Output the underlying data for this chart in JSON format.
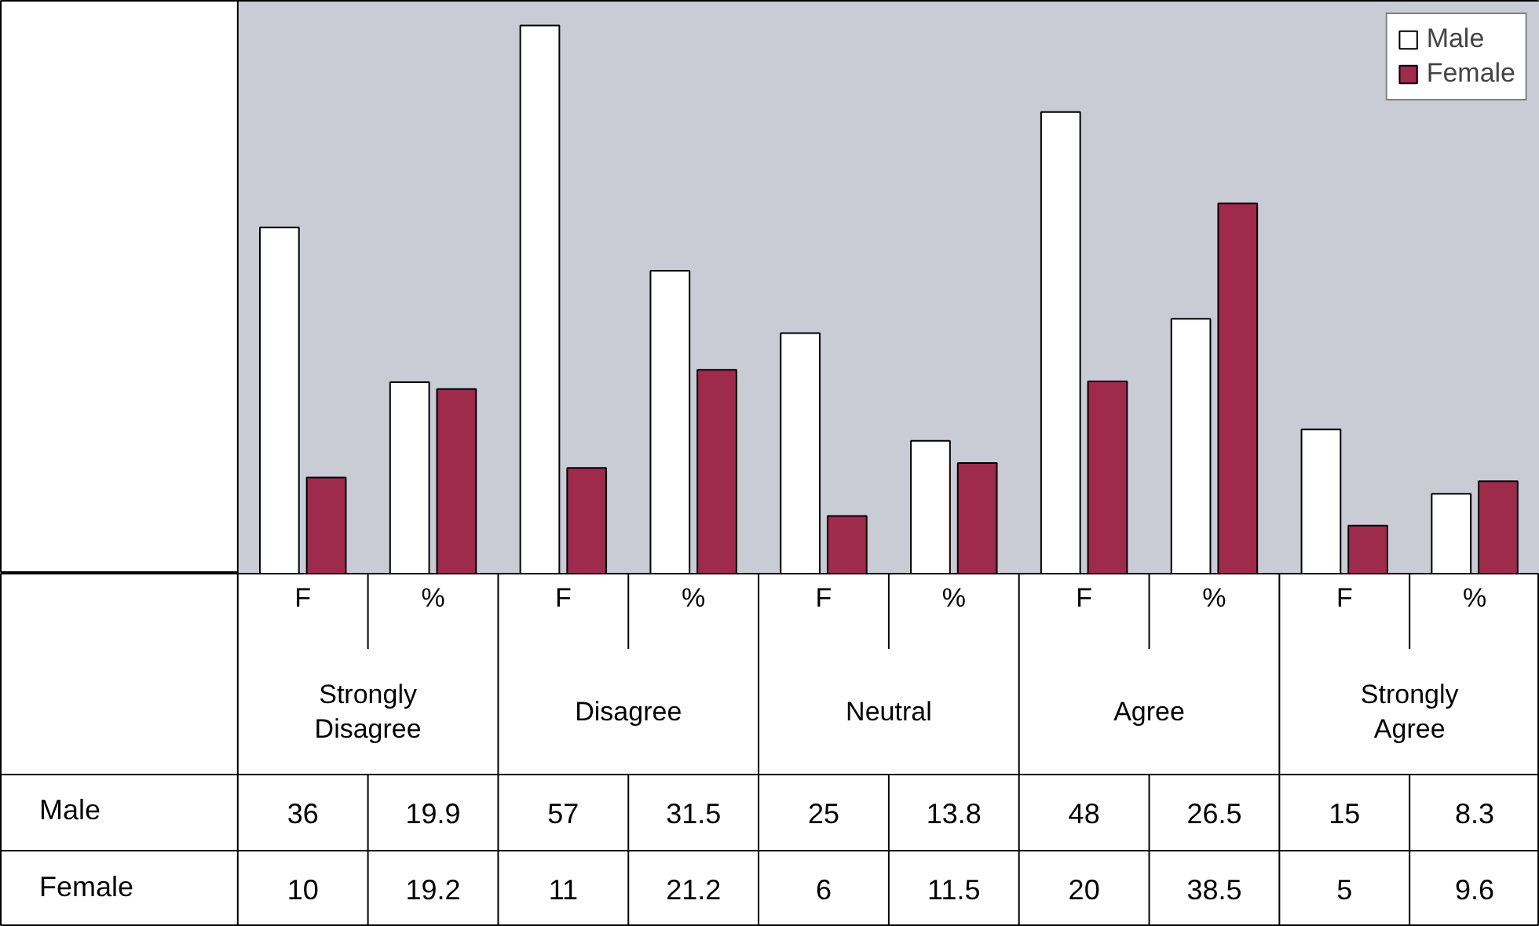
{
  "chart_data": {
    "type": "bar",
    "categories": [
      "F",
      "%",
      "F",
      "%",
      "F",
      "%",
      "F",
      "%",
      "F",
      "%"
    ],
    "annotations": [
      "Strongly Disagree",
      "Disagree",
      "Neutral",
      "Agree",
      "Strongly Agree"
    ],
    "series": [
      {
        "name": "Male",
        "color": "#ffffff",
        "values": [
          36,
          19.9,
          57,
          31.5,
          25,
          13.8,
          48,
          26.5,
          15,
          8.3
        ]
      },
      {
        "name": "Female",
        "color": "#9e2a4c",
        "values": [
          10,
          19.2,
          11,
          21.2,
          6,
          11.5,
          20,
          38.5,
          5,
          9.6
        ]
      }
    ],
    "data_labels": true,
    "legend": "top right",
    "grid": false
  }
}
